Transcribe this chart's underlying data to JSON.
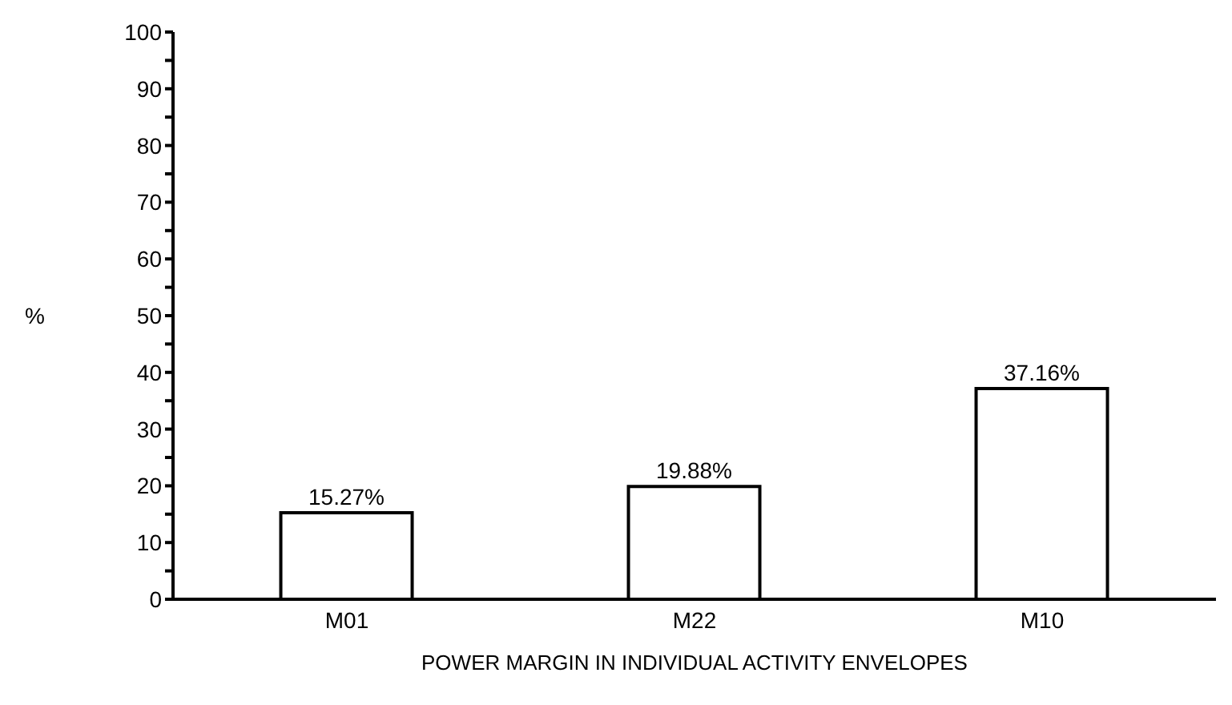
{
  "chart_data": {
    "type": "bar",
    "xlabel": "POWER MARGIN IN INDIVIDUAL ACTIVITY ENVELOPES",
    "ylabel": "%",
    "categories": [
      "M01",
      "M22",
      "M10"
    ],
    "values": [
      15.27,
      19.88,
      37.16
    ],
    "value_labels": [
      "15.27%",
      "19.88%",
      "37.16%"
    ],
    "color": "#ffffff",
    "ylim": [
      0,
      100
    ],
    "yticks": [
      0,
      {
        "value": 5,
        "label": null
      },
      10,
      {
        "value": 15,
        "label": null
      },
      20,
      {
        "value": 25,
        "label": null
      },
      30,
      {
        "value": 35,
        "label": null
      },
      40,
      {
        "value": 45,
        "label": null
      },
      50,
      {
        "value": 55,
        "label": null
      },
      60,
      {
        "value": 65,
        "label": null
      },
      70,
      {
        "value": 75,
        "label": null
      },
      80,
      {
        "value": 85,
        "label": null
      },
      90,
      {
        "value": 95,
        "label": null
      },
      100
    ],
    "grid": false,
    "legend": false
  }
}
